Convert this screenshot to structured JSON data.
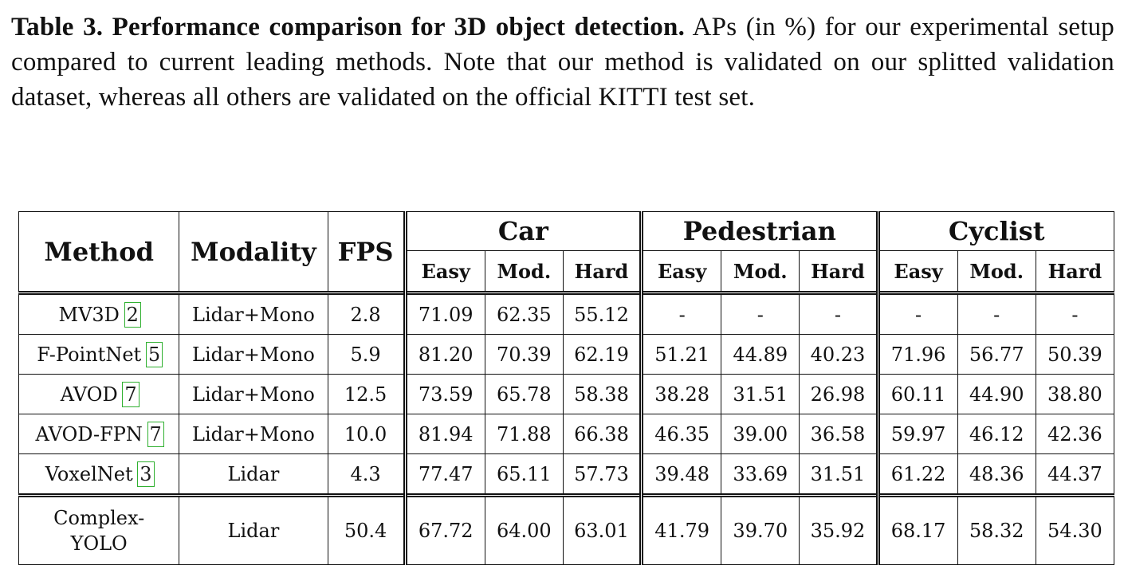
{
  "caption": {
    "label": "Table 3. Performance comparison for 3D object detection.",
    "text": " APs (in %) for our experimental setup compared to current leading methods. Note that our method is validated on our splitted validation dataset, whereas all others are validated on the official KITTI test set."
  },
  "table": {
    "headers": {
      "method": "Method",
      "modality": "Modality",
      "fps": "FPS",
      "groups": [
        "Car",
        "Pedestrian",
        "Cyclist"
      ],
      "sub": [
        "Easy",
        "Mod.",
        "Hard"
      ]
    },
    "rows": [
      {
        "method": "MV3D",
        "ref": "2",
        "modality": "Lidar+Mono",
        "fps": "2.8",
        "values": [
          "71.09",
          "62.35",
          "55.12",
          "-",
          "-",
          "-",
          "-",
          "-",
          "-"
        ]
      },
      {
        "method": "F-PointNet",
        "ref": "5",
        "modality": "Lidar+Mono",
        "fps": "5.9",
        "values": [
          "81.20",
          "70.39",
          "62.19",
          "51.21",
          "44.89",
          "40.23",
          "71.96",
          "56.77",
          "50.39"
        ]
      },
      {
        "method": "AVOD",
        "ref": "7",
        "modality": "Lidar+Mono",
        "fps": "12.5",
        "values": [
          "73.59",
          "65.78",
          "58.38",
          "38.28",
          "31.51",
          "26.98",
          "60.11",
          "44.90",
          "38.80"
        ]
      },
      {
        "method": "AVOD-FPN",
        "ref": "7",
        "modality": "Lidar+Mono",
        "fps": "10.0",
        "values": [
          "81.94",
          "71.88",
          "66.38",
          "46.35",
          "39.00",
          "36.58",
          "59.97",
          "46.12",
          "42.36"
        ]
      },
      {
        "method": "VoxelNet",
        "ref": "3",
        "modality": "Lidar",
        "fps": "4.3",
        "values": [
          "77.47",
          "65.11",
          "57.73",
          "39.48",
          "33.69",
          "31.51",
          "61.22",
          "48.36",
          "44.37"
        ]
      },
      {
        "method_line1": "Complex-",
        "method_line2": "YOLO",
        "modality": "Lidar",
        "fps": "50.4",
        "values": [
          "67.72",
          "64.00",
          "63.01",
          "41.79",
          "39.70",
          "35.92",
          "68.17",
          "58.32",
          "54.30"
        ]
      }
    ]
  }
}
